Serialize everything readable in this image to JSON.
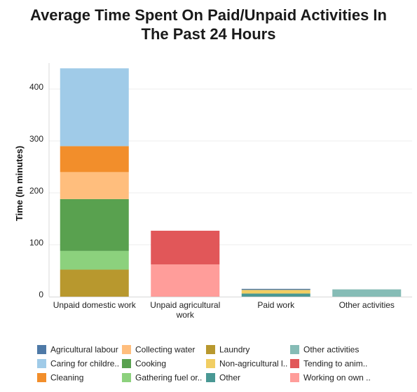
{
  "chart_data": {
    "type": "bar",
    "stacked": true,
    "title_lines": [
      "Average Time Spent On Paid/Unpaid Activities In",
      "The Past 24 Hours"
    ],
    "ylabel": "Time (In minutes)",
    "xlabel": "",
    "ylim": [
      0,
      450
    ],
    "yticks": [
      0,
      100,
      200,
      300,
      400
    ],
    "grid": true,
    "legend_position": "bottom",
    "categories": [
      [
        "Unpaid domestic work"
      ],
      [
        "Unpaid agricultural",
        "work"
      ],
      [
        "Paid work"
      ],
      [
        "Other activities"
      ]
    ],
    "series": [
      {
        "name": "Laundry",
        "color": "#b8982e",
        "values": [
          52,
          0,
          0,
          0
        ]
      },
      {
        "name": "Gathering fuel or..",
        "color": "#8cd17d",
        "values": [
          36,
          0,
          0,
          0
        ]
      },
      {
        "name": "Cooking",
        "color": "#59a14f",
        "values": [
          100,
          0,
          0,
          0
        ]
      },
      {
        "name": "Collecting water",
        "color": "#ffbe7d",
        "values": [
          52,
          0,
          0,
          0
        ]
      },
      {
        "name": "Cleaning",
        "color": "#f28e2b",
        "values": [
          50,
          0,
          0,
          0
        ]
      },
      {
        "name": "Caring for childre..",
        "color": "#a0cbe8",
        "values": [
          150,
          0,
          0,
          0
        ]
      },
      {
        "name": "Working on own ..",
        "color": "#ff9d9a",
        "values": [
          0,
          62,
          0,
          0
        ]
      },
      {
        "name": "Tending to anim..",
        "color": "#e15759",
        "values": [
          0,
          65,
          0,
          0
        ]
      },
      {
        "name": "Other",
        "color": "#499894",
        "values": [
          0,
          0,
          6,
          0
        ]
      },
      {
        "name": "Non-agricultural l..",
        "color": "#f1ce63",
        "values": [
          0,
          0,
          7,
          0
        ]
      },
      {
        "name": "Agricultural labour",
        "color": "#4e79a7",
        "values": [
          0,
          0,
          2,
          0
        ]
      },
      {
        "name": "Other activities",
        "color": "#86bcb6",
        "values": [
          0,
          0,
          0,
          14
        ]
      }
    ],
    "legend_order": [
      "Agricultural labour",
      "Collecting water",
      "Laundry",
      "Other activities",
      "Caring for childre..",
      "Cooking",
      "Non-agricultural l..",
      "Tending to anim..",
      "Cleaning",
      "Gathering fuel or..",
      "Other",
      "Working on own .."
    ]
  }
}
